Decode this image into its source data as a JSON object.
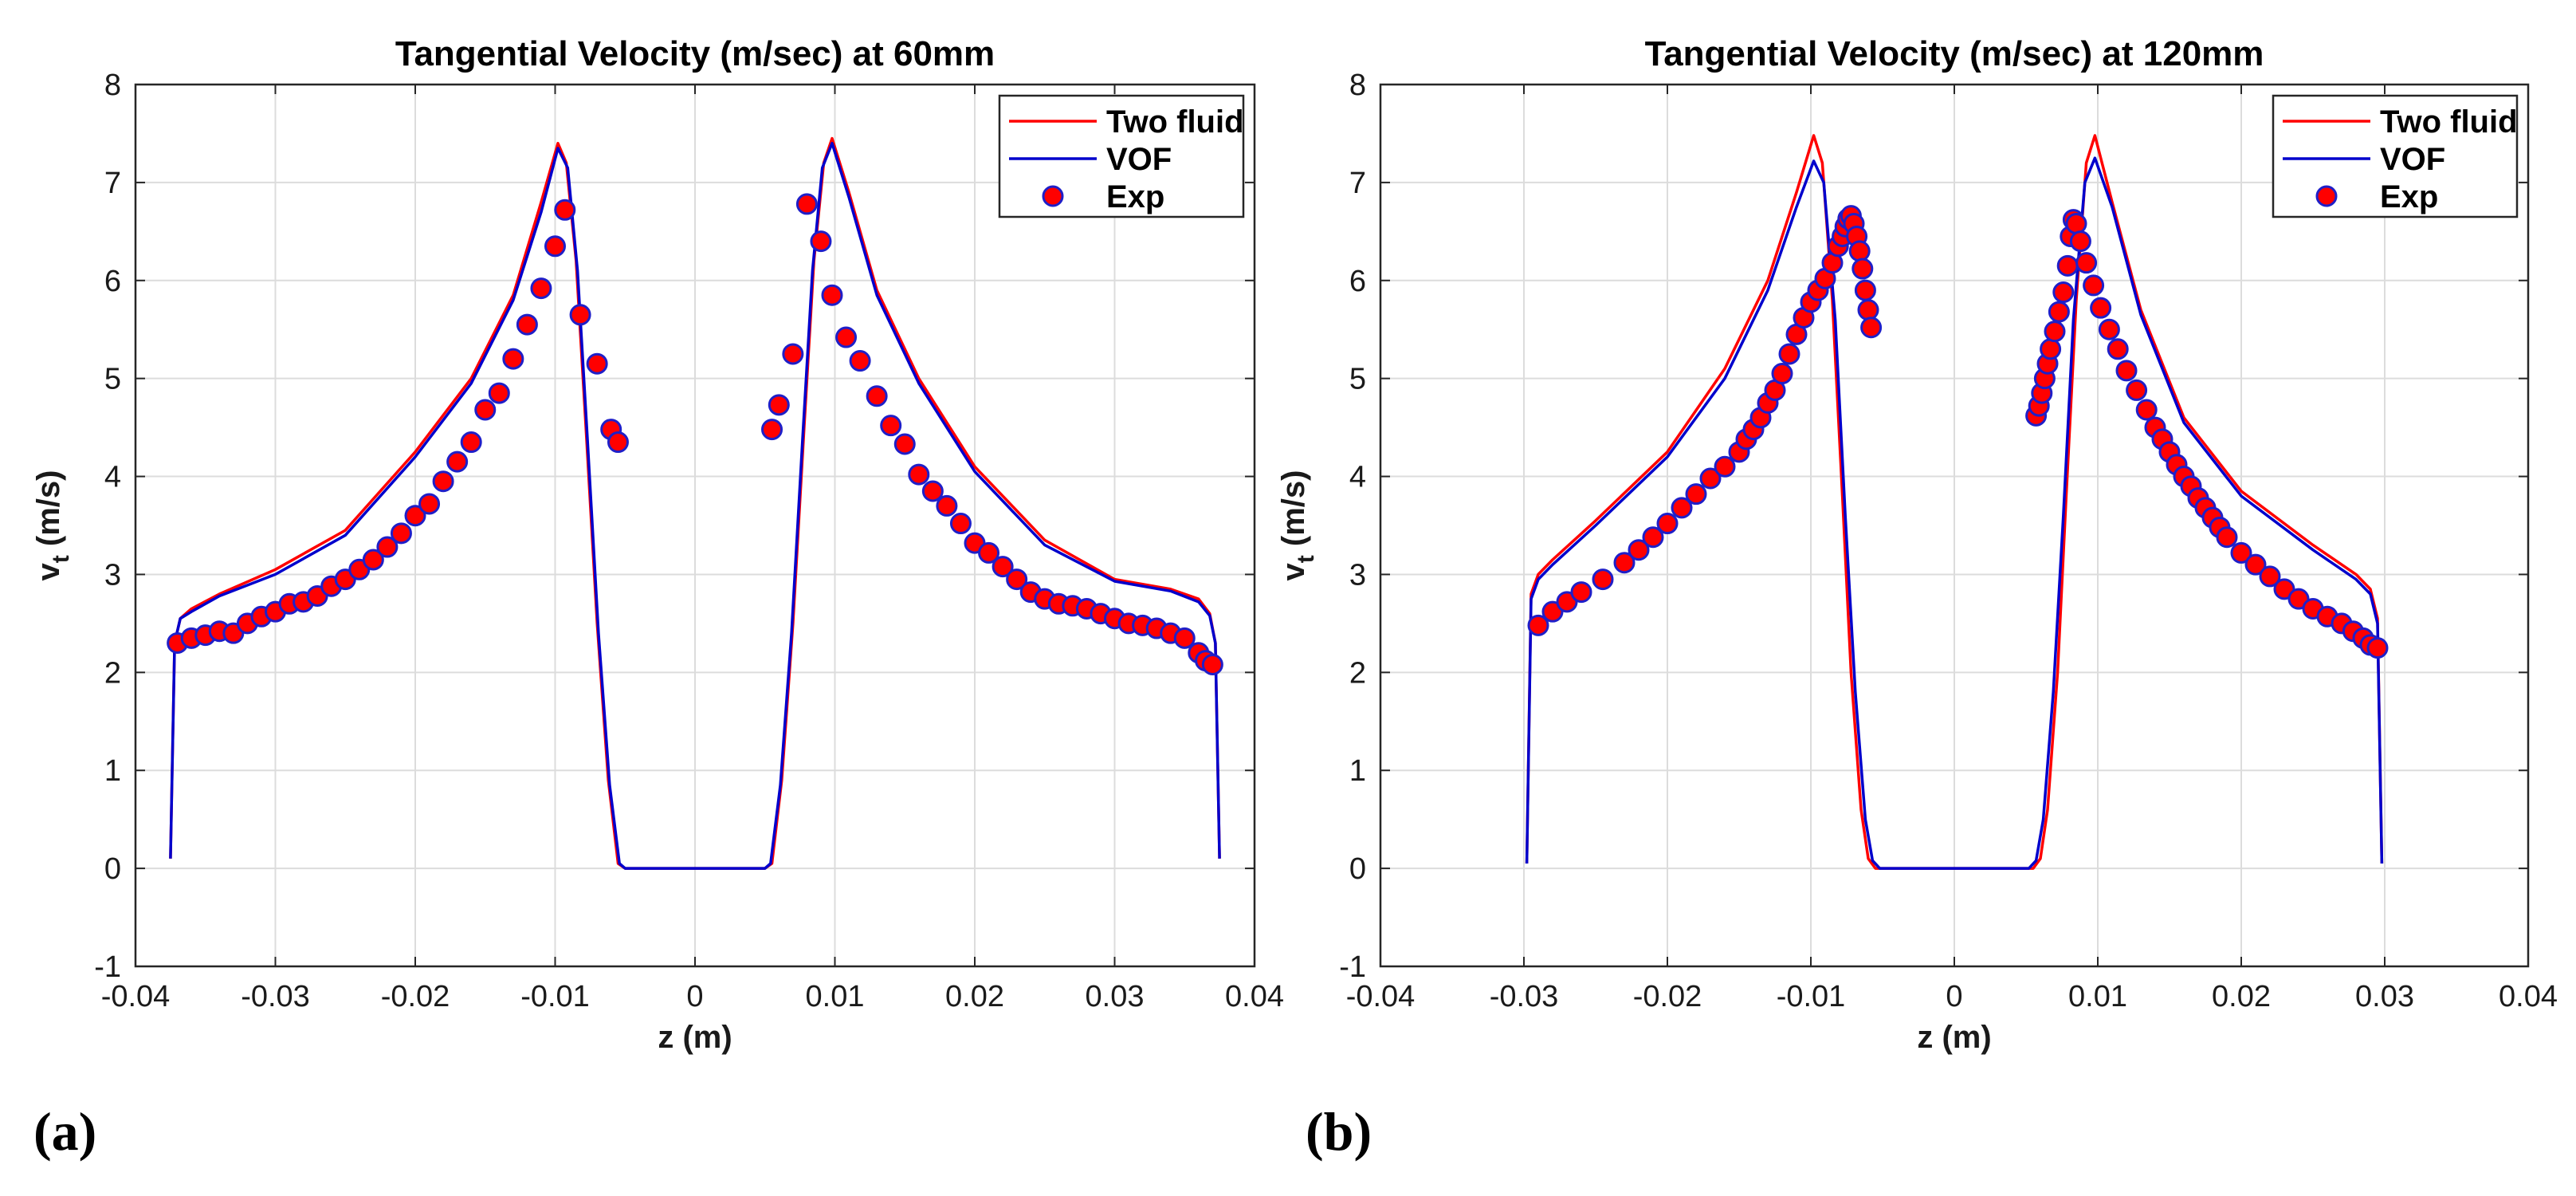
{
  "colors": {
    "two_fluid": "#ff0000",
    "vof": "#0000cc",
    "exp_fill": "#ff0000",
    "exp_edge": "#1f1fc8",
    "grid": "#dcdcdc",
    "axis": "#262626"
  },
  "chart_data": [
    {
      "id": "a",
      "panel_label": "(a)",
      "type": "line",
      "title": "Tangential Velocity (m/sec) at 60mm",
      "xlabel": "z (m)",
      "ylabel_main": "v",
      "ylabel_sub": "t",
      "ylabel_units": "(m/s)",
      "xlim": [
        -0.04,
        0.04
      ],
      "ylim": [
        -1,
        8
      ],
      "xticks": [
        -0.04,
        -0.03,
        -0.02,
        -0.01,
        0,
        0.01,
        0.02,
        0.03,
        0.04
      ],
      "xtick_labels": [
        "-0.04",
        "-0.03",
        "-0.02",
        "-0.01",
        "0",
        "0.01",
        "0.02",
        "0.03",
        "0.04"
      ],
      "yticks": [
        -1,
        0,
        1,
        2,
        3,
        4,
        5,
        6,
        7,
        8
      ],
      "ytick_labels": [
        "-1",
        "0",
        "1",
        "2",
        "3",
        "4",
        "5",
        "6",
        "7",
        "8"
      ],
      "grid": true,
      "legend_position": "top-right",
      "legend": [
        "Two fluid",
        "VOF",
        "Exp"
      ],
      "series": [
        {
          "name": "Two fluid",
          "kind": "line",
          "color": "#ff0000",
          "x": [
            -0.0375,
            -0.0372,
            -0.0368,
            -0.036,
            -0.034,
            -0.03,
            -0.025,
            -0.02,
            -0.016,
            -0.013,
            -0.011,
            -0.0098,
            -0.0092,
            -0.0085,
            -0.0078,
            -0.007,
            -0.0062,
            -0.0055,
            -0.005,
            0,
            0.005,
            0.0055,
            0.0062,
            0.007,
            0.0078,
            0.0085,
            0.0092,
            0.0098,
            0.011,
            0.013,
            0.016,
            0.02,
            0.025,
            0.03,
            0.034,
            0.036,
            0.0368,
            0.0372,
            0.0375
          ],
          "y": [
            0.1,
            2.3,
            2.55,
            2.65,
            2.8,
            3.05,
            3.45,
            4.25,
            5.0,
            5.85,
            6.8,
            7.4,
            7.2,
            6.2,
            4.5,
            2.5,
            0.9,
            0.05,
            0,
            0,
            0,
            0.05,
            0.9,
            2.5,
            4.5,
            6.2,
            7.2,
            7.45,
            6.9,
            5.9,
            5.0,
            4.1,
            3.35,
            2.95,
            2.85,
            2.75,
            2.6,
            2.3,
            0.1
          ]
        },
        {
          "name": "VOF",
          "kind": "line",
          "color": "#0000cc",
          "x": [
            -0.0375,
            -0.0372,
            -0.0368,
            -0.036,
            -0.034,
            -0.03,
            -0.025,
            -0.02,
            -0.016,
            -0.013,
            -0.011,
            -0.0098,
            -0.0091,
            -0.0084,
            -0.0077,
            -0.0069,
            -0.0061,
            -0.0054,
            -0.005,
            0,
            0.005,
            0.0054,
            0.0061,
            0.0069,
            0.0077,
            0.0084,
            0.0091,
            0.0098,
            0.011,
            0.013,
            0.016,
            0.02,
            0.025,
            0.03,
            0.034,
            0.036,
            0.0368,
            0.0372,
            0.0375
          ],
          "y": [
            0.1,
            2.3,
            2.55,
            2.62,
            2.78,
            3.0,
            3.4,
            4.2,
            4.95,
            5.8,
            6.7,
            7.35,
            7.15,
            6.1,
            4.4,
            2.4,
            0.85,
            0.05,
            0,
            0,
            0,
            0.05,
            0.85,
            2.4,
            4.4,
            6.1,
            7.15,
            7.4,
            6.85,
            5.85,
            4.95,
            4.05,
            3.3,
            2.93,
            2.83,
            2.72,
            2.58,
            2.3,
            0.1
          ]
        },
        {
          "name": "Exp",
          "kind": "scatter",
          "x": [
            -0.037,
            -0.036,
            -0.035,
            -0.034,
            -0.033,
            -0.032,
            -0.031,
            -0.03,
            -0.029,
            -0.028,
            -0.027,
            -0.026,
            -0.025,
            -0.024,
            -0.023,
            -0.022,
            -0.021,
            -0.02,
            -0.019,
            -0.018,
            -0.017,
            -0.016,
            -0.015,
            -0.014,
            -0.013,
            -0.012,
            -0.011,
            -0.01,
            -0.0093,
            -0.0082,
            -0.007,
            -0.006,
            -0.0055,
            0.0055,
            0.006,
            0.007,
            0.008,
            0.009,
            0.0098,
            0.0108,
            0.0118,
            0.013,
            0.014,
            0.015,
            0.016,
            0.017,
            0.018,
            0.019,
            0.02,
            0.021,
            0.022,
            0.023,
            0.024,
            0.025,
            0.026,
            0.027,
            0.028,
            0.029,
            0.03,
            0.031,
            0.032,
            0.033,
            0.034,
            0.035,
            0.036,
            0.0365,
            0.037
          ],
          "y": [
            2.3,
            2.35,
            2.38,
            2.42,
            2.4,
            2.5,
            2.57,
            2.62,
            2.7,
            2.72,
            2.78,
            2.88,
            2.95,
            3.05,
            3.15,
            3.28,
            3.42,
            3.6,
            3.72,
            3.95,
            4.15,
            4.35,
            4.68,
            4.85,
            5.2,
            5.55,
            5.92,
            6.35,
            6.72,
            5.65,
            5.15,
            4.48,
            4.35,
            4.48,
            4.73,
            5.25,
            6.78,
            6.4,
            5.85,
            5.42,
            5.18,
            4.82,
            4.52,
            4.33,
            4.02,
            3.85,
            3.7,
            3.52,
            3.32,
            3.22,
            3.08,
            2.95,
            2.82,
            2.75,
            2.7,
            2.68,
            2.65,
            2.6,
            2.55,
            2.5,
            2.48,
            2.45,
            2.4,
            2.35,
            2.2,
            2.12,
            2.08
          ]
        }
      ]
    },
    {
      "id": "b",
      "panel_label": "(b)",
      "type": "line",
      "title": "Tangential Velocity (m/sec) at 120mm",
      "xlabel": "z (m)",
      "ylabel_main": "v",
      "ylabel_sub": "t",
      "ylabel_units": "(m/s)",
      "xlim": [
        -0.04,
        0.04
      ],
      "ylim": [
        -1,
        8
      ],
      "xticks": [
        -0.04,
        -0.03,
        -0.02,
        -0.01,
        0,
        0.01,
        0.02,
        0.03,
        0.04
      ],
      "xtick_labels": [
        "-0.04",
        "-0.03",
        "-0.02",
        "-0.01",
        "0",
        "0.01",
        "0.02",
        "0.03",
        "0.04"
      ],
      "yticks": [
        -1,
        0,
        1,
        2,
        3,
        4,
        5,
        6,
        7,
        8
      ],
      "ytick_labels": [
        "-1",
        "0",
        "1",
        "2",
        "3",
        "4",
        "5",
        "6",
        "7",
        "8"
      ],
      "grid": true,
      "legend_position": "top-right",
      "legend": [
        "Two fluid",
        "VOF",
        "Exp"
      ],
      "series": [
        {
          "name": "Two fluid",
          "kind": "line",
          "color": "#ff0000",
          "x": [
            -0.0298,
            -0.0295,
            -0.029,
            -0.028,
            -0.025,
            -0.02,
            -0.016,
            -0.013,
            -0.011,
            -0.0098,
            -0.0092,
            -0.0085,
            -0.0078,
            -0.0072,
            -0.0065,
            -0.006,
            -0.0055,
            0,
            0.0055,
            0.006,
            0.0065,
            0.0072,
            0.0078,
            0.0085,
            0.0092,
            0.0098,
            0.011,
            0.013,
            0.016,
            0.02,
            0.025,
            0.028,
            0.029,
            0.0295,
            0.0298
          ],
          "y": [
            0.05,
            2.8,
            3.0,
            3.15,
            3.55,
            4.25,
            5.1,
            6.0,
            6.9,
            7.48,
            7.2,
            5.8,
            3.8,
            2.0,
            0.6,
            0.1,
            0,
            0,
            0,
            0.1,
            0.6,
            2.0,
            3.8,
            5.8,
            7.2,
            7.48,
            6.8,
            5.7,
            4.6,
            3.85,
            3.3,
            3.0,
            2.85,
            2.55,
            0.05
          ]
        },
        {
          "name": "VOF",
          "kind": "line",
          "color": "#0000cc",
          "x": [
            -0.0298,
            -0.0295,
            -0.029,
            -0.028,
            -0.025,
            -0.02,
            -0.016,
            -0.013,
            -0.011,
            -0.0098,
            -0.0091,
            -0.0083,
            -0.0076,
            -0.0069,
            -0.0062,
            -0.0057,
            -0.0052,
            0,
            0.0052,
            0.0057,
            0.0062,
            0.0069,
            0.0076,
            0.0083,
            0.0091,
            0.0098,
            0.011,
            0.013,
            0.016,
            0.02,
            0.025,
            0.028,
            0.029,
            0.0295,
            0.0298
          ],
          "y": [
            0.05,
            2.75,
            2.95,
            3.1,
            3.5,
            4.2,
            5.0,
            5.9,
            6.75,
            7.22,
            7.0,
            5.6,
            3.6,
            1.8,
            0.5,
            0.08,
            0,
            0,
            0,
            0.08,
            0.5,
            1.8,
            3.6,
            5.6,
            7.0,
            7.25,
            6.75,
            5.65,
            4.55,
            3.8,
            3.25,
            2.95,
            2.8,
            2.5,
            0.05
          ]
        },
        {
          "name": "Exp",
          "kind": "scatter",
          "x": [
            -0.029,
            -0.028,
            -0.027,
            -0.026,
            -0.0245,
            -0.023,
            -0.022,
            -0.021,
            -0.02,
            -0.019,
            -0.018,
            -0.017,
            -0.016,
            -0.015,
            -0.0145,
            -0.014,
            -0.0135,
            -0.013,
            -0.0125,
            -0.012,
            -0.0115,
            -0.011,
            -0.0105,
            -0.01,
            -0.0095,
            -0.009,
            -0.0085,
            -0.0081,
            -0.0078,
            -0.0076,
            -0.0074,
            -0.0072,
            -0.007,
            -0.0068,
            -0.0066,
            -0.0064,
            -0.0062,
            -0.006,
            -0.0058,
            0.0057,
            0.0059,
            0.0061,
            0.0063,
            0.0065,
            0.0067,
            0.007,
            0.0073,
            0.0076,
            0.0079,
            0.0081,
            0.0083,
            0.0085,
            0.0088,
            0.0092,
            0.0097,
            0.0102,
            0.0108,
            0.0114,
            0.012,
            0.0127,
            0.0134,
            0.014,
            0.0145,
            0.015,
            0.0155,
            0.016,
            0.0165,
            0.017,
            0.0175,
            0.018,
            0.0185,
            0.019,
            0.02,
            0.021,
            0.022,
            0.023,
            0.024,
            0.025,
            0.026,
            0.027,
            0.0278,
            0.0285,
            0.029,
            0.0295
          ],
          "y": [
            2.48,
            2.62,
            2.72,
            2.82,
            2.95,
            3.12,
            3.25,
            3.38,
            3.52,
            3.68,
            3.82,
            3.98,
            4.1,
            4.25,
            4.38,
            4.48,
            4.6,
            4.75,
            4.88,
            5.05,
            5.25,
            5.45,
            5.62,
            5.78,
            5.9,
            6.02,
            6.18,
            6.35,
            6.45,
            6.55,
            6.63,
            6.66,
            6.58,
            6.45,
            6.3,
            6.12,
            5.9,
            5.7,
            5.52,
            4.62,
            4.72,
            4.85,
            5.0,
            5.15,
            5.3,
            5.48,
            5.68,
            5.88,
            6.15,
            6.45,
            6.62,
            6.58,
            6.4,
            6.18,
            5.95,
            5.72,
            5.5,
            5.3,
            5.08,
            4.88,
            4.68,
            4.5,
            4.38,
            4.25,
            4.12,
            4.0,
            3.9,
            3.78,
            3.68,
            3.58,
            3.48,
            3.38,
            3.22,
            3.1,
            2.98,
            2.85,
            2.75,
            2.65,
            2.57,
            2.5,
            2.42,
            2.35,
            2.28,
            2.25
          ]
        }
      ]
    }
  ]
}
